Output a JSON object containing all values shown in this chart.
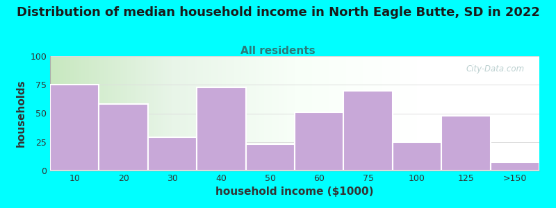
{
  "title": "Distribution of median household income in North Eagle Butte, SD in 2022",
  "subtitle": "All residents",
  "xlabel": "household income ($1000)",
  "ylabel": "households",
  "background_color": "#00FFFF",
  "bar_color": "#c8a8d8",
  "bar_edge_color": "#b090c8",
  "categories": [
    "10",
    "20",
    "30",
    "40",
    "50",
    "60",
    "75",
    "100",
    "125",
    ">150"
  ],
  "values": [
    75,
    58,
    29,
    73,
    23,
    51,
    70,
    25,
    48,
    7
  ],
  "ylim": [
    0,
    100
  ],
  "yticks": [
    0,
    25,
    50,
    75,
    100
  ],
  "title_fontsize": 13,
  "subtitle_fontsize": 11,
  "axis_label_fontsize": 11,
  "watermark_text": "City-Data.com",
  "watermark_color": "#b0c8c8"
}
